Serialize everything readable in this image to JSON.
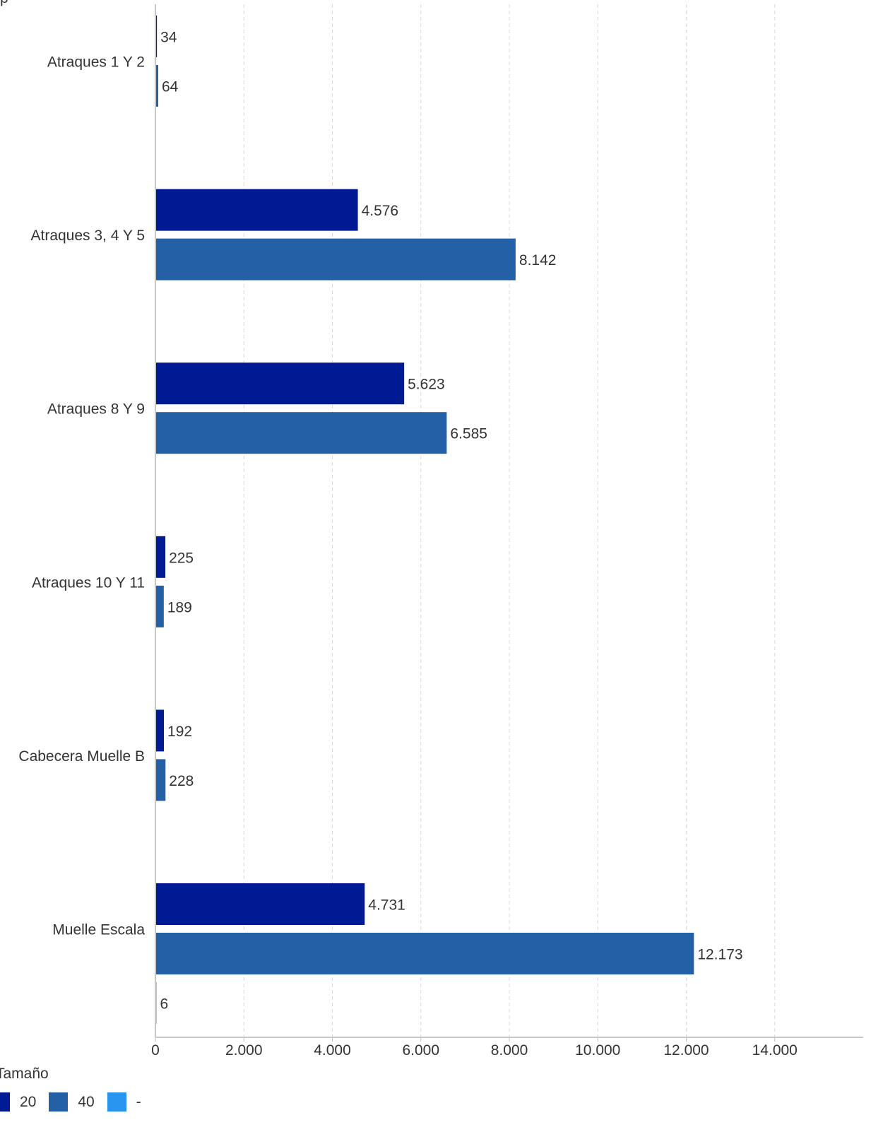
{
  "chart_data": {
    "type": "bar",
    "orientation": "horizontal",
    "categories": [
      "Atraques 1 Y 2",
      "Atraques 3, 4 Y 5",
      "Atraques 8 Y 9",
      "Atraques 10 Y 11",
      "Cabecera Muelle B",
      "Muelle Escala"
    ],
    "series": [
      {
        "name": "20",
        "color": "#001A94",
        "values": [
          34,
          4576,
          5623,
          225,
          192,
          4731
        ],
        "labels": [
          "34",
          "4.576",
          "5.623",
          "225",
          "192",
          "4.731"
        ]
      },
      {
        "name": "40",
        "color": "#2360A5",
        "values": [
          64,
          8142,
          6585,
          189,
          228,
          12173
        ],
        "labels": [
          "64",
          "8.142",
          "6.585",
          "189",
          "228",
          "12.173"
        ]
      },
      {
        "name": "-",
        "color": "#2A95F0",
        "values": [
          null,
          null,
          null,
          null,
          null,
          6
        ],
        "labels": [
          null,
          null,
          null,
          null,
          null,
          "6"
        ]
      }
    ],
    "xlim": [
      0,
      16000
    ],
    "ticks": [
      0,
      2000,
      4000,
      6000,
      8000,
      10000,
      12000,
      14000
    ],
    "tick_labels": [
      "0",
      "2.000",
      "4.000",
      "6.000",
      "8.000",
      "10.000",
      "12.000",
      "14.000"
    ],
    "grid": true,
    "legend_title": "Tamaño",
    "legend_position": "bottom-left"
  },
  "corner_label": "p"
}
